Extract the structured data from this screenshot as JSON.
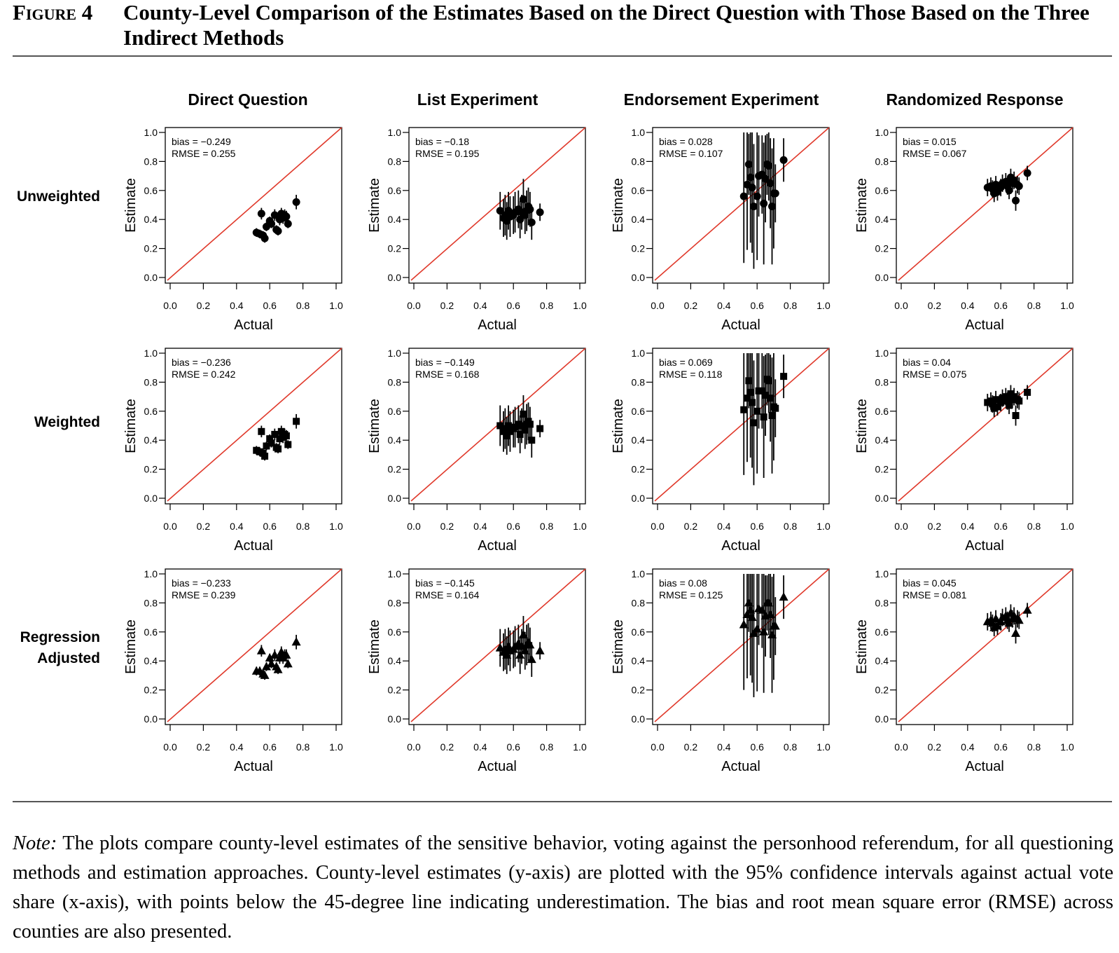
{
  "figure": {
    "label": "Figure 4",
    "title": "County-Level Comparison of the Estimates Based on the Direct Question with Those Based on the Three Indirect Methods"
  },
  "columns": [
    "Direct Question",
    "List Experiment",
    "Endorsement Experiment",
    "Randomized Response"
  ],
  "rows": [
    "Unweighted",
    "Weighted",
    "Regression Adjusted"
  ],
  "axis": {
    "xlabel": "Actual",
    "ylabel": "Estimate",
    "ticks": [
      "0.0",
      "0.2",
      "0.4",
      "0.6",
      "0.8",
      "1.0"
    ]
  },
  "note": {
    "lead": "Note:",
    "text": " The plots compare county-level estimates of the sensitive behavior, voting against the personhood referendum, for all questioning methods and estimation approaches. County-level estimates (y-axis) are plotted with the 95% confidence intervals against actual vote share (x-axis), with points below the 45-degree line indicating underestimation. The bias and root mean square error (RMSE) across counties are also presented."
  },
  "colors": {
    "diagonal": "#e0392b",
    "points": "#000000",
    "axes": "#000000"
  },
  "chart_data": {
    "type": "scatter",
    "xlim": [
      0,
      1
    ],
    "ylim": [
      0,
      1
    ],
    "reference_line": "45-degree",
    "actual_x": [
      0.52,
      0.54,
      0.55,
      0.56,
      0.57,
      0.58,
      0.6,
      0.61,
      0.63,
      0.64,
      0.65,
      0.66,
      0.67,
      0.68,
      0.69,
      0.7,
      0.71,
      0.76
    ],
    "panels": [
      {
        "row": "Unweighted",
        "col": "Direct Question",
        "marker": "circle",
        "bias": "bias = −0.249",
        "rmse": "RMSE = 0.255",
        "estimates": [
          0.31,
          0.3,
          0.44,
          0.29,
          0.27,
          0.35,
          0.39,
          0.37,
          0.43,
          0.33,
          0.32,
          0.4,
          0.44,
          0.41,
          0.43,
          0.42,
          0.37,
          0.52
        ],
        "ci_half": [
          0.03,
          0.03,
          0.04,
          0.03,
          0.03,
          0.03,
          0.03,
          0.03,
          0.04,
          0.03,
          0.03,
          0.04,
          0.04,
          0.04,
          0.04,
          0.04,
          0.03,
          0.05
        ]
      },
      {
        "row": "Unweighted",
        "col": "List Experiment",
        "marker": "circle",
        "bias": "bias = −0.18",
        "rmse": "RMSE = 0.195",
        "estimates": [
          0.46,
          0.41,
          0.43,
          0.39,
          0.46,
          0.42,
          0.43,
          0.45,
          0.47,
          0.4,
          0.45,
          0.54,
          0.43,
          0.46,
          0.49,
          0.47,
          0.38,
          0.45
        ],
        "ci_half": [
          0.13,
          0.13,
          0.14,
          0.13,
          0.13,
          0.14,
          0.13,
          0.14,
          0.13,
          0.13,
          0.12,
          0.14,
          0.13,
          0.14,
          0.13,
          0.12,
          0.12,
          0.06
        ]
      },
      {
        "row": "Unweighted",
        "col": "Endorsement Experiment",
        "marker": "circle",
        "bias": "bias = 0.028",
        "rmse": "RMSE = 0.107",
        "estimates": [
          0.56,
          0.64,
          0.78,
          0.69,
          0.62,
          0.49,
          0.56,
          0.7,
          0.71,
          0.51,
          0.68,
          0.78,
          0.77,
          0.65,
          0.49,
          0.58,
          0.58,
          0.81
        ],
        "ci_half": [
          0.46,
          0.45,
          0.21,
          0.45,
          0.45,
          0.43,
          0.44,
          0.28,
          0.27,
          0.42,
          0.3,
          0.21,
          0.24,
          0.31,
          0.4,
          0.38,
          0.2,
          0.15
        ]
      },
      {
        "row": "Unweighted",
        "col": "Randomized Response",
        "marker": "circle",
        "bias": "bias = 0.015",
        "rmse": "RMSE = 0.067",
        "estimates": [
          0.62,
          0.63,
          0.61,
          0.58,
          0.64,
          0.59,
          0.62,
          0.65,
          0.66,
          0.63,
          0.6,
          0.69,
          0.65,
          0.67,
          0.53,
          0.64,
          0.63,
          0.72
        ],
        "ci_half": [
          0.06,
          0.06,
          0.06,
          0.06,
          0.06,
          0.06,
          0.06,
          0.06,
          0.06,
          0.06,
          0.06,
          0.06,
          0.06,
          0.06,
          0.07,
          0.06,
          0.06,
          0.05
        ]
      },
      {
        "row": "Weighted",
        "col": "Direct Question",
        "marker": "square",
        "bias": "bias = −0.236",
        "rmse": "RMSE = 0.242",
        "estimates": [
          0.33,
          0.32,
          0.46,
          0.31,
          0.29,
          0.36,
          0.41,
          0.38,
          0.44,
          0.35,
          0.34,
          0.41,
          0.46,
          0.42,
          0.44,
          0.43,
          0.37,
          0.53
        ],
        "ci_half": [
          0.03,
          0.03,
          0.04,
          0.03,
          0.03,
          0.03,
          0.03,
          0.03,
          0.04,
          0.03,
          0.03,
          0.04,
          0.04,
          0.04,
          0.04,
          0.04,
          0.03,
          0.05
        ]
      },
      {
        "row": "Weighted",
        "col": "List Experiment",
        "marker": "square",
        "bias": "bias = −0.149",
        "rmse": "RMSE = 0.168",
        "estimates": [
          0.5,
          0.46,
          0.48,
          0.43,
          0.5,
          0.46,
          0.48,
          0.49,
          0.51,
          0.44,
          0.5,
          0.58,
          0.47,
          0.51,
          0.53,
          0.51,
          0.4,
          0.48
        ],
        "ci_half": [
          0.14,
          0.14,
          0.14,
          0.13,
          0.14,
          0.14,
          0.13,
          0.14,
          0.13,
          0.13,
          0.12,
          0.13,
          0.13,
          0.14,
          0.13,
          0.12,
          0.12,
          0.06
        ]
      },
      {
        "row": "Weighted",
        "col": "Endorsement Experiment",
        "marker": "square",
        "bias": "bias = 0.069",
        "rmse": "RMSE = 0.118",
        "estimates": [
          0.61,
          0.69,
          0.81,
          0.73,
          0.66,
          0.52,
          0.6,
          0.74,
          0.74,
          0.56,
          0.71,
          0.82,
          0.81,
          0.69,
          0.57,
          0.63,
          0.62,
          0.84
        ],
        "ci_half": [
          0.45,
          0.44,
          0.19,
          0.45,
          0.45,
          0.43,
          0.43,
          0.26,
          0.26,
          0.42,
          0.28,
          0.18,
          0.22,
          0.3,
          0.4,
          0.37,
          0.2,
          0.15
        ]
      },
      {
        "row": "Weighted",
        "col": "Randomized Response",
        "marker": "square",
        "bias": "bias = 0.04",
        "rmse": "RMSE = 0.075",
        "estimates": [
          0.66,
          0.67,
          0.65,
          0.62,
          0.68,
          0.63,
          0.66,
          0.69,
          0.7,
          0.67,
          0.64,
          0.72,
          0.68,
          0.7,
          0.57,
          0.68,
          0.67,
          0.73
        ],
        "ci_half": [
          0.06,
          0.06,
          0.06,
          0.06,
          0.06,
          0.06,
          0.06,
          0.06,
          0.06,
          0.06,
          0.06,
          0.06,
          0.06,
          0.06,
          0.07,
          0.06,
          0.06,
          0.05
        ]
      },
      {
        "row": "Regression Adjusted",
        "col": "Direct Question",
        "marker": "triangle",
        "bias": "bias = −0.233",
        "rmse": "RMSE = 0.239",
        "estimates": [
          0.33,
          0.33,
          0.47,
          0.31,
          0.3,
          0.36,
          0.42,
          0.38,
          0.44,
          0.36,
          0.34,
          0.42,
          0.46,
          0.42,
          0.44,
          0.44,
          0.38,
          0.53
        ],
        "ci_half": [
          0.03,
          0.03,
          0.04,
          0.03,
          0.03,
          0.03,
          0.03,
          0.03,
          0.04,
          0.03,
          0.03,
          0.04,
          0.04,
          0.04,
          0.04,
          0.04,
          0.03,
          0.05
        ]
      },
      {
        "row": "Regression Adjusted",
        "col": "List Experiment",
        "marker": "triangle",
        "bias": "bias = −0.145",
        "rmse": "RMSE = 0.164",
        "estimates": [
          0.49,
          0.46,
          0.48,
          0.44,
          0.5,
          0.47,
          0.48,
          0.5,
          0.52,
          0.44,
          0.5,
          0.58,
          0.47,
          0.51,
          0.53,
          0.51,
          0.41,
          0.47
        ],
        "ci_half": [
          0.13,
          0.13,
          0.14,
          0.13,
          0.13,
          0.14,
          0.13,
          0.14,
          0.13,
          0.13,
          0.12,
          0.13,
          0.13,
          0.14,
          0.13,
          0.12,
          0.12,
          0.06
        ]
      },
      {
        "row": "Regression Adjusted",
        "col": "Endorsement Experiment",
        "marker": "triangle",
        "bias": "bias = 0.08",
        "rmse": "RMSE = 0.125",
        "estimates": [
          0.65,
          0.72,
          0.8,
          0.75,
          0.7,
          0.59,
          0.62,
          0.76,
          0.75,
          0.6,
          0.71,
          0.8,
          0.8,
          0.72,
          0.58,
          0.64,
          0.64,
          0.84
        ],
        "ci_half": [
          0.45,
          0.44,
          0.2,
          0.45,
          0.45,
          0.44,
          0.43,
          0.25,
          0.26,
          0.42,
          0.28,
          0.19,
          0.22,
          0.3,
          0.4,
          0.37,
          0.2,
          0.15
        ]
      },
      {
        "row": "Regression Adjusted",
        "col": "Randomized Response",
        "marker": "triangle",
        "bias": "bias = 0.045",
        "rmse": "RMSE = 0.081",
        "estimates": [
          0.67,
          0.68,
          0.66,
          0.63,
          0.69,
          0.64,
          0.67,
          0.7,
          0.71,
          0.68,
          0.66,
          0.73,
          0.69,
          0.71,
          0.59,
          0.69,
          0.68,
          0.75
        ],
        "ci_half": [
          0.06,
          0.06,
          0.06,
          0.06,
          0.06,
          0.06,
          0.06,
          0.06,
          0.06,
          0.06,
          0.06,
          0.06,
          0.06,
          0.06,
          0.07,
          0.06,
          0.06,
          0.05
        ]
      }
    ]
  }
}
